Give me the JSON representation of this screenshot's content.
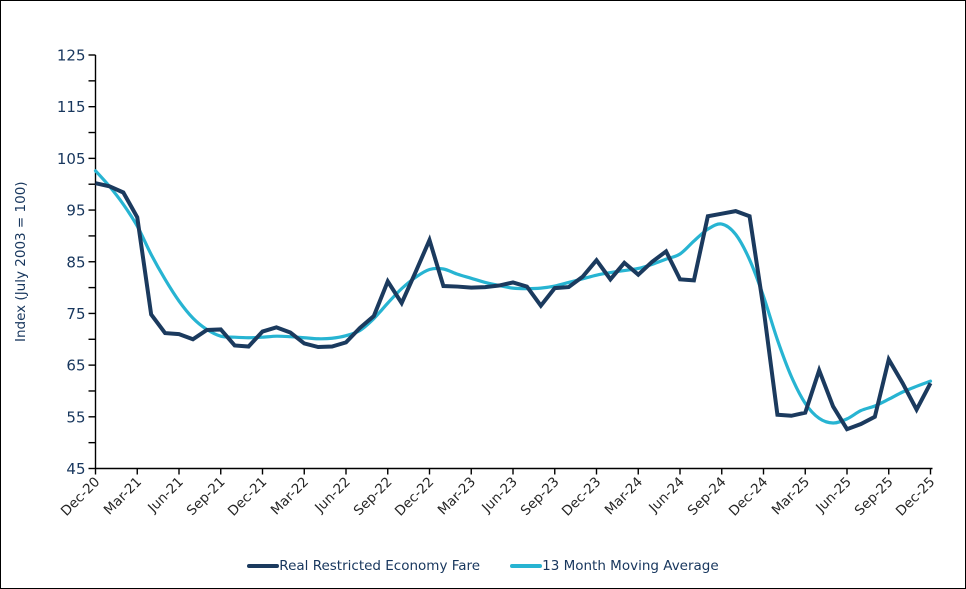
{
  "chart_data": {
    "type": "line",
    "title": "",
    "xlabel": "",
    "ylabel": "Index (July 2003 = 100)",
    "ylim": [
      45,
      125
    ],
    "y_major_ticks": [
      125,
      115,
      105,
      95,
      85,
      75,
      65,
      55,
      45
    ],
    "y_minor_tick_step": 5,
    "grid": "off",
    "legend_position": "bottom-center",
    "x_tick_labels": [
      "Dec-20",
      "Mar-21",
      "Jun-21",
      "Sep-21",
      "Dec-21",
      "Mar-22",
      "Jun-22",
      "Sep-22",
      "Dec-22",
      "Mar-23",
      "Jun-23",
      "Sep-23",
      "Dec-23",
      "Mar-24",
      "Jun-24",
      "Sep-24",
      "Dec-24",
      "Mar-25",
      "Jun-25",
      "Sep-25",
      "Dec-25"
    ],
    "x_tick_step_months": 3,
    "x_range_months": [
      "Dec-20",
      "Dec-25"
    ],
    "series": [
      {
        "name": "Real Restricted Economy Fare",
        "color": "#1b3a5e",
        "stroke_width": 4,
        "line_style": "straight",
        "values": [
          100.2,
          99.6,
          98.4,
          93.6,
          74.8,
          71.2,
          71.0,
          70.0,
          71.8,
          71.9,
          68.8,
          68.6,
          71.5,
          72.3,
          71.3,
          69.2,
          68.5,
          68.6,
          69.4,
          72.2,
          74.5,
          81.2,
          77.0,
          83.0,
          89.2,
          80.3,
          80.2,
          80.0,
          80.1,
          80.4,
          81.0,
          80.2,
          76.5,
          79.9,
          80.1,
          82.1,
          85.3,
          81.6,
          84.8,
          82.5,
          85.0,
          87.0,
          81.6,
          81.4,
          93.8,
          94.3,
          94.8,
          93.8,
          76.0,
          55.4,
          55.2,
          55.8,
          64.0,
          57.0,
          52.6,
          53.6,
          55.0,
          66.1,
          61.5,
          56.4,
          61.5
        ]
      },
      {
        "name": "13 Month Moving Average",
        "color": "#27b4d2",
        "stroke_width": 3.2,
        "line_style": "smooth",
        "values": [
          102.6,
          99.6,
          96.1,
          91.9,
          86.4,
          81.6,
          77.4,
          74.1,
          71.9,
          70.6,
          70.4,
          70.3,
          70.4,
          70.6,
          70.5,
          70.3,
          70.1,
          70.2,
          70.7,
          71.7,
          74.0,
          77.0,
          79.8,
          82.0,
          83.5,
          83.6,
          82.6,
          81.8,
          81.0,
          80.4,
          79.9,
          79.8,
          79.9,
          80.3,
          81.0,
          81.7,
          82.4,
          82.9,
          83.3,
          83.7,
          84.5,
          85.5,
          86.5,
          89.0,
          91.3,
          92.3,
          90.3,
          85.4,
          78.3,
          69.9,
          62.8,
          57.6,
          54.7,
          53.8,
          54.6,
          56.2,
          57.1,
          58.4,
          59.8,
          60.9,
          61.9
        ]
      }
    ],
    "colors": {
      "axis": "#000000",
      "y_tick_text": "#17365d",
      "x_tick_text": "#262626",
      "ylabel_text": "#17365d",
      "legend_text": "#17365d",
      "background": "#ffffff",
      "frame_border": "#000000"
    }
  }
}
